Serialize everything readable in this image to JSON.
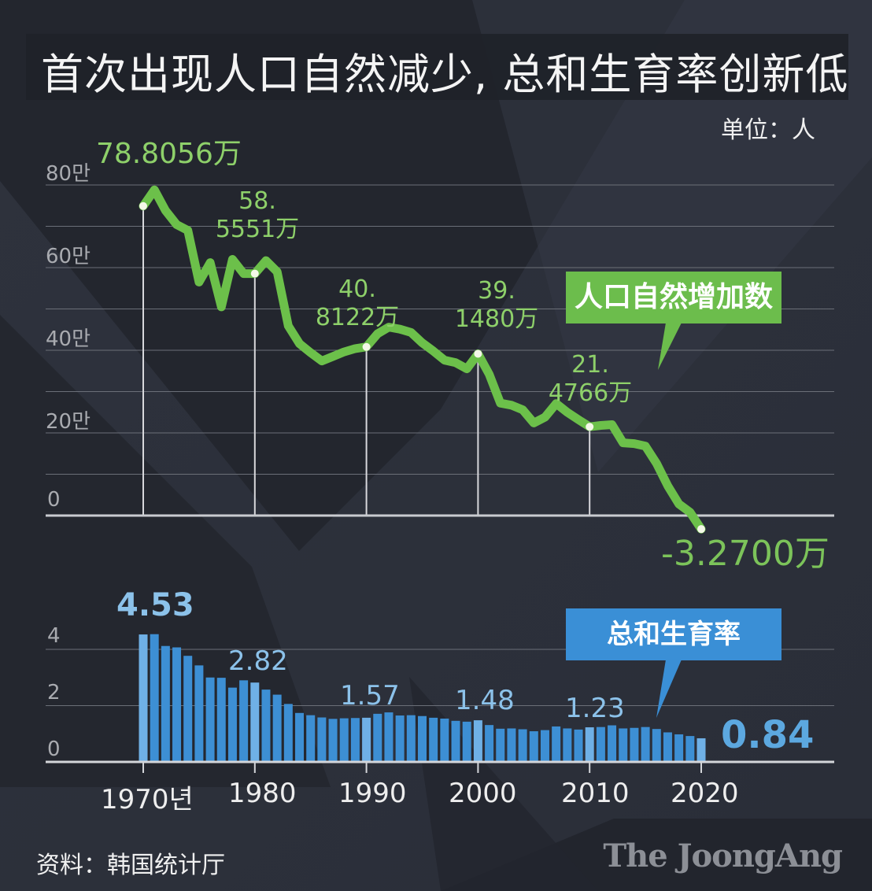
{
  "header": {
    "title": "首次出现人口自然减少, 总和生育率创新低",
    "unit": "单位：人"
  },
  "footer": {
    "source": "资料：韩国统计厅",
    "brand": "The JoongAng"
  },
  "colors": {
    "background": "#2b2f3a",
    "line_green": "#6cc04a",
    "label_green": "#8ed06a",
    "bar_blue": "#3d8fd4",
    "bar_highlight": "#6fb0e6",
    "tag_blue": "#3a8fd6",
    "tag_green": "#6cbd4c"
  },
  "chart_data": [
    {
      "type": "line",
      "title": "人口自然增加数",
      "series_tag": "人口自然增加数",
      "unit": "人",
      "xlabel": "",
      "ylabel": "",
      "yticks": [
        "0",
        "20만",
        "40만",
        "60만",
        "80만"
      ],
      "ylim": [
        -40000,
        800000
      ],
      "grid": true,
      "x": [
        1970,
        1971,
        1972,
        1973,
        1974,
        1975,
        1976,
        1977,
        1978,
        1979,
        1980,
        1981,
        1982,
        1983,
        1984,
        1985,
        1986,
        1987,
        1988,
        1989,
        1990,
        1991,
        1992,
        1993,
        1994,
        1995,
        1996,
        1997,
        1998,
        1999,
        2000,
        2001,
        2002,
        2003,
        2004,
        2005,
        2006,
        2007,
        2008,
        2009,
        2010,
        2011,
        2012,
        2013,
        2014,
        2015,
        2016,
        2017,
        2018,
        2019,
        2020
      ],
      "values": [
        749000,
        788056,
        738000,
        704000,
        690000,
        565000,
        612000,
        505000,
        620000,
        585556,
        585551,
        617000,
        590000,
        459000,
        416000,
        394000,
        374000,
        385000,
        396000,
        404000,
        408122,
        440000,
        456000,
        451000,
        443000,
        418000,
        398000,
        376000,
        370000,
        355000,
        391480,
        342000,
        272000,
        267000,
        256000,
        224000,
        238000,
        271000,
        250000,
        232000,
        214766,
        218000,
        220000,
        176000,
        174000,
        168000,
        126000,
        72000,
        28000,
        8000,
        -32700
      ],
      "annotations": [
        {
          "year": 1971,
          "label": "78.8056万"
        },
        {
          "year": 1980,
          "label_line1": "58.",
          "label_line2": "5551万"
        },
        {
          "year": 1990,
          "label_line1": "40.",
          "label_line2": "8122万"
        },
        {
          "year": 2000,
          "label_line1": "39.",
          "label_line2": "1480万"
        },
        {
          "year": 2010,
          "label_line1": "21.",
          "label_line2": "4766万"
        },
        {
          "year": 2020,
          "label": "-3.2700万"
        }
      ]
    },
    {
      "type": "bar",
      "title": "总和生育率",
      "series_tag": "总和生育率",
      "yticks": [
        "0",
        "2",
        "4"
      ],
      "ylim": [
        0,
        5
      ],
      "grid": true,
      "xticks": [
        "1970년",
        "1980",
        "1990",
        "2000",
        "2010",
        "2020"
      ],
      "categories": [
        1970,
        1971,
        1972,
        1973,
        1974,
        1975,
        1976,
        1977,
        1978,
        1979,
        1980,
        1981,
        1982,
        1983,
        1984,
        1985,
        1986,
        1987,
        1988,
        1989,
        1990,
        1991,
        1992,
        1993,
        1994,
        1995,
        1996,
        1997,
        1998,
        1999,
        2000,
        2001,
        2002,
        2003,
        2004,
        2005,
        2006,
        2007,
        2008,
        2009,
        2010,
        2011,
        2012,
        2013,
        2014,
        2015,
        2016,
        2017,
        2018,
        2019,
        2020
      ],
      "values": [
        4.53,
        4.54,
        4.12,
        4.07,
        3.77,
        3.43,
        3.0,
        2.99,
        2.64,
        2.9,
        2.82,
        2.57,
        2.39,
        2.06,
        1.74,
        1.66,
        1.58,
        1.53,
        1.55,
        1.56,
        1.57,
        1.71,
        1.76,
        1.65,
        1.66,
        1.63,
        1.57,
        1.54,
        1.46,
        1.43,
        1.48,
        1.31,
        1.18,
        1.19,
        1.16,
        1.09,
        1.13,
        1.26,
        1.19,
        1.15,
        1.23,
        1.24,
        1.3,
        1.19,
        1.21,
        1.24,
        1.17,
        1.05,
        0.98,
        0.92,
        0.84
      ],
      "annotations": [
        {
          "year": 1970,
          "label": "4.53"
        },
        {
          "year": 1980,
          "label": "2.82"
        },
        {
          "year": 1990,
          "label": "1.57"
        },
        {
          "year": 2000,
          "label": "1.48"
        },
        {
          "year": 2010,
          "label": "1.23"
        },
        {
          "year": 2020,
          "label": "0.84"
        }
      ]
    }
  ]
}
